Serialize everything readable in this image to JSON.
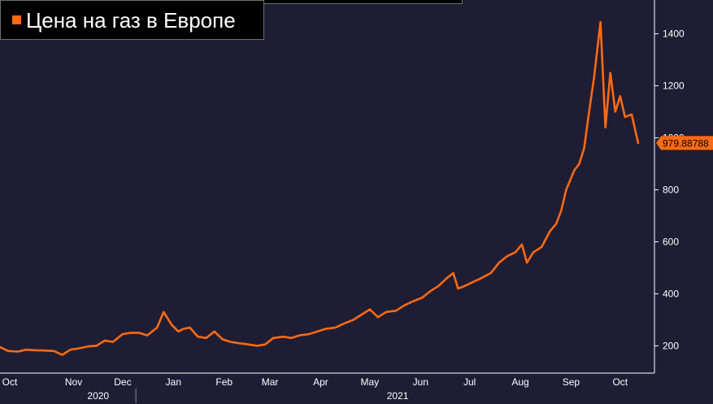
{
  "legend": {
    "label": "Цена на газ в Европе"
  },
  "colors": {
    "background": "#1f1d33",
    "series": "#ff6a13",
    "axis": "#ffffff",
    "legend_bg": "#000000"
  },
  "chart_data": {
    "type": "line",
    "title": "",
    "xlabel": "",
    "ylabel": "",
    "ylim": [
      95,
      1530
    ],
    "xlim": [
      "2020-10-01",
      "2021-10-31"
    ],
    "y_ticks": [
      200,
      400,
      600,
      800,
      1000,
      1200,
      1400
    ],
    "y_axis_side": "right",
    "x_ticks": [
      {
        "label": "Oct",
        "date": "2020-10-01"
      },
      {
        "label": "Nov",
        "date": "2020-11-15"
      },
      {
        "label": "Dec",
        "date": "2020-12-15"
      },
      {
        "label": "Jan",
        "date": "2021-01-15"
      },
      {
        "label": "Feb",
        "date": "2021-02-15"
      },
      {
        "label": "Mar",
        "date": "2021-03-15"
      },
      {
        "label": "Apr",
        "date": "2021-04-15"
      },
      {
        "label": "May",
        "date": "2021-05-15"
      },
      {
        "label": "Jun",
        "date": "2021-06-15"
      },
      {
        "label": "Jul",
        "date": "2021-07-15"
      },
      {
        "label": "Aug",
        "date": "2021-08-15"
      },
      {
        "label": "Sep",
        "date": "2021-09-15"
      },
      {
        "label": "Oct",
        "date": "2021-10-15"
      }
    ],
    "year_labels": [
      {
        "label": "2020",
        "date": "2020-11-30"
      },
      {
        "label": "2021",
        "date": "2021-06-01"
      }
    ],
    "last_value_label": "979.88788",
    "grid": false,
    "series": [
      {
        "name": "Цена на газ в Европе",
        "x": [
          "2020-10-01",
          "2020-10-06",
          "2020-10-12",
          "2020-10-17",
          "2020-10-23",
          "2020-10-28",
          "2020-11-03",
          "2020-11-08",
          "2020-11-13",
          "2020-11-18",
          "2020-11-24",
          "2020-11-29",
          "2020-12-04",
          "2020-12-09",
          "2020-12-15",
          "2020-12-20",
          "2020-12-25",
          "2020-12-30",
          "2021-01-05",
          "2021-01-09",
          "2021-01-14",
          "2021-01-18",
          "2021-01-21",
          "2021-01-25",
          "2021-01-30",
          "2021-02-04",
          "2021-02-09",
          "2021-02-14",
          "2021-02-19",
          "2021-02-24",
          "2021-03-02",
          "2021-03-07",
          "2021-03-12",
          "2021-03-17",
          "2021-03-23",
          "2021-03-28",
          "2021-04-02",
          "2021-04-08",
          "2021-04-13",
          "2021-04-18",
          "2021-04-24",
          "2021-04-29",
          "2021-05-05",
          "2021-05-10",
          "2021-05-15",
          "2021-05-20",
          "2021-05-25",
          "2021-05-31",
          "2021-06-05",
          "2021-06-10",
          "2021-06-16",
          "2021-06-21",
          "2021-06-26",
          "2021-07-01",
          "2021-07-05",
          "2021-07-08",
          "2021-07-12",
          "2021-07-17",
          "2021-07-22",
          "2021-07-28",
          "2021-08-02",
          "2021-08-07",
          "2021-08-12",
          "2021-08-16",
          "2021-08-19",
          "2021-08-23",
          "2021-08-28",
          "2021-09-02",
          "2021-09-06",
          "2021-09-09",
          "2021-09-12",
          "2021-09-14",
          "2021-09-17",
          "2021-09-20",
          "2021-09-23",
          "2021-09-26",
          "2021-09-29",
          "2021-10-03",
          "2021-10-06",
          "2021-10-09",
          "2021-10-12",
          "2021-10-15",
          "2021-10-18",
          "2021-10-22",
          "2021-10-26"
        ],
        "values": [
          195,
          180,
          178,
          185,
          183,
          182,
          180,
          165,
          185,
          190,
          198,
          200,
          220,
          215,
          245,
          250,
          250,
          240,
          270,
          330,
          280,
          255,
          265,
          270,
          235,
          230,
          255,
          225,
          215,
          210,
          205,
          200,
          205,
          230,
          235,
          230,
          240,
          245,
          255,
          265,
          270,
          285,
          300,
          320,
          340,
          310,
          330,
          335,
          355,
          370,
          385,
          410,
          430,
          460,
          480,
          420,
          430,
          445,
          460,
          480,
          520,
          545,
          560,
          590,
          520,
          560,
          580,
          640,
          670,
          720,
          800,
          830,
          875,
          900,
          960,
          1100,
          1230,
          1445,
          1040,
          1250,
          1100,
          1160,
          1080,
          1090,
          980
        ]
      }
    ]
  }
}
